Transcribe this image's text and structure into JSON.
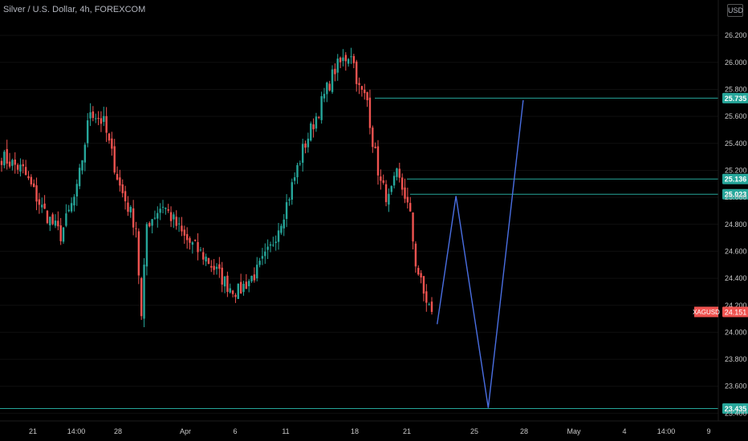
{
  "title": "Silver / U.S. Dollar, 4h, FOREXCOM",
  "currency": "USD",
  "colors": {
    "background": "#000000",
    "up": "#26a69a",
    "down": "#ef5350",
    "level_line": "#26a69a",
    "projection": "#4a6fe3",
    "axis_text": "#c9c9c9",
    "price_tag": "#ef5350"
  },
  "chart_data": {
    "type": "candlestick",
    "symbol": "XAGUSD",
    "last_price": "24.151",
    "ylim": [
      23.42,
      26.25
    ],
    "y_ticks": [
      "26.200",
      "26.000",
      "25.800",
      "25.600",
      "25.400",
      "25.200",
      "25.000",
      "24.800",
      "24.600",
      "24.400",
      "24.200",
      "24.000",
      "23.800",
      "23.600",
      "23.400"
    ],
    "x_ticks": [
      "21",
      "14:00",
      "28",
      "Apr",
      "6",
      "11",
      "18",
      "21",
      "25",
      "28",
      "May",
      "4",
      "14:00",
      "9"
    ],
    "levels": [
      {
        "label": "25.735",
        "price": 25.735
      },
      {
        "label": "25.136",
        "price": 25.136
      },
      {
        "label": "25.023",
        "price": 25.023
      },
      {
        "label": "23.435",
        "price": 23.435
      }
    ],
    "projection_path": [
      {
        "bar": 162,
        "price": 24.06
      },
      {
        "bar": 169,
        "price": 25.01
      },
      {
        "bar": 181,
        "price": 23.44
      },
      {
        "bar": 194,
        "price": 25.72
      }
    ],
    "anchors": [
      {
        "bar": 0,
        "price": 25.3
      },
      {
        "bar": 8,
        "price": 25.2
      },
      {
        "bar": 15,
        "price": 24.92
      },
      {
        "bar": 22,
        "price": 24.72
      },
      {
        "bar": 28,
        "price": 25.05
      },
      {
        "bar": 33,
        "price": 25.65
      },
      {
        "bar": 38,
        "price": 25.55
      },
      {
        "bar": 44,
        "price": 25.08
      },
      {
        "bar": 50,
        "price": 24.78
      },
      {
        "bar": 52,
        "price": 24.1
      },
      {
        "bar": 54,
        "price": 24.8
      },
      {
        "bar": 60,
        "price": 24.95
      },
      {
        "bar": 68,
        "price": 24.7
      },
      {
        "bar": 76,
        "price": 24.55
      },
      {
        "bar": 84,
        "price": 24.35
      },
      {
        "bar": 88,
        "price": 24.3
      },
      {
        "bar": 95,
        "price": 24.45
      },
      {
        "bar": 100,
        "price": 24.62
      },
      {
        "bar": 106,
        "price": 24.95
      },
      {
        "bar": 112,
        "price": 25.35
      },
      {
        "bar": 118,
        "price": 25.65
      },
      {
        "bar": 124,
        "price": 25.95
      },
      {
        "bar": 130,
        "price": 26.08
      },
      {
        "bar": 133,
        "price": 25.8
      },
      {
        "bar": 136,
        "price": 25.72
      },
      {
        "bar": 138,
        "price": 25.42
      },
      {
        "bar": 141,
        "price": 25.1
      },
      {
        "bar": 144,
        "price": 24.98
      },
      {
        "bar": 147,
        "price": 25.16
      },
      {
        "bar": 150,
        "price": 25.02
      },
      {
        "bar": 152,
        "price": 24.85
      },
      {
        "bar": 154,
        "price": 24.52
      },
      {
        "bar": 157,
        "price": 24.28
      },
      {
        "bar": 160,
        "price": 24.15
      }
    ]
  }
}
